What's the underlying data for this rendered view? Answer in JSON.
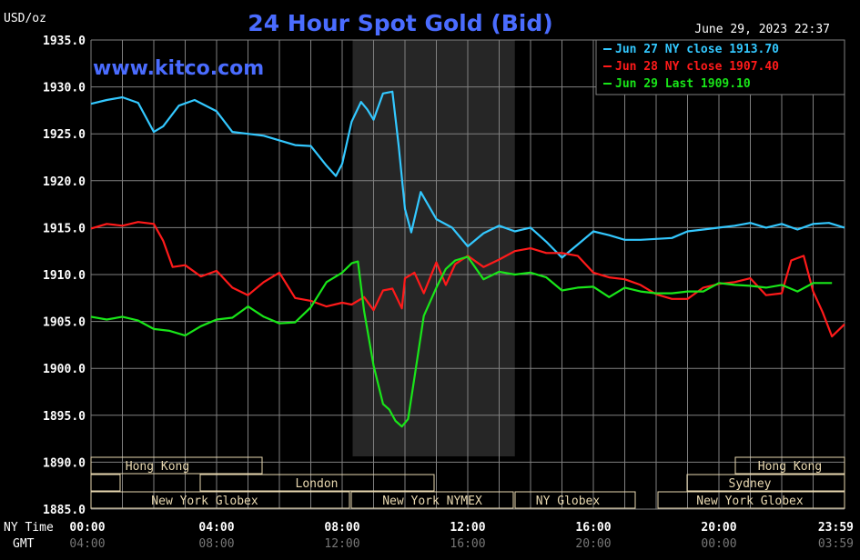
{
  "header": {
    "title": "24 Hour Spot Gold (Bid)",
    "unit": "USD/oz",
    "timestamp": "June 29, 2023 22:37",
    "website": "www.kitco.com"
  },
  "colors": {
    "background": "#000000",
    "grid": "#808080",
    "title": "#4a6cff",
    "jun27": "#33c8ff",
    "jun28": "#ff1a1a",
    "jun29": "#19e619",
    "band_fill": "#e8d8b0",
    "highlight": "#262626"
  },
  "legend": {
    "items": [
      {
        "label": "Jun 27 NY close 1913.70",
        "color_key": "jun27"
      },
      {
        "label": "Jun 28 NY close 1907.40",
        "color_key": "jun28"
      },
      {
        "label": "Jun 29 Last 1909.10",
        "color_key": "jun29"
      }
    ]
  },
  "axis": {
    "row1_label": "NY Time",
    "row2_label": "GMT",
    "ny_ticks": [
      "00:00",
      "04:00",
      "08:00",
      "12:00",
      "16:00",
      "20:00",
      "23:59"
    ],
    "gmt_ticks": [
      "04:00",
      "08:00",
      "12:00",
      "16:00",
      "20:00",
      "00:00",
      "03:59"
    ],
    "y_ticks": [
      "1935.0",
      "1930.0",
      "1925.0",
      "1920.0",
      "1915.0",
      "1910.0",
      "1905.0",
      "1900.0",
      "1895.0",
      "1890.0",
      "1885.0"
    ]
  },
  "sessions": {
    "hong_kong_1": "Hong Kong",
    "london": "London",
    "new_york_globex_1": "New York Globex",
    "new_york_nymex": "New York NYMEX",
    "ny_globex": "NY Globex",
    "hong_kong_2": "Hong Kong",
    "sydney": "Sydney",
    "new_york_globex_2": "New York Globex"
  },
  "chart_data": {
    "type": "line",
    "title": "24 Hour Spot Gold (Bid)",
    "ylabel": "USD/oz",
    "xlabel": "NY Time",
    "ylim": [
      1885,
      1935
    ],
    "xlim": [
      0,
      24
    ],
    "grid": true,
    "legend_position": "top-right",
    "series": [
      {
        "name": "Jun 27 NY close 1913.70",
        "color_key": "jun27",
        "x": [
          0,
          0.5,
          1,
          1.5,
          2,
          2.3,
          2.8,
          3.3,
          4,
          4.5,
          5,
          5.5,
          6,
          6.5,
          7,
          7.5,
          7.8,
          8,
          8.3,
          8.6,
          8.8,
          9,
          9.3,
          9.6,
          9.8,
          10,
          10.2,
          10.5,
          11,
          11.5,
          12,
          12.5,
          13,
          13.5,
          14,
          14.5,
          15,
          15.5,
          16,
          16.5,
          17,
          17.5,
          18,
          18.5,
          19,
          19.5,
          20,
          20.5,
          21,
          21.5,
          22,
          22.5,
          23,
          23.5,
          24
        ],
        "values": [
          1928.2,
          1928.6,
          1928.9,
          1928.3,
          1925.2,
          1925.8,
          1928.0,
          1928.6,
          1927.4,
          1925.2,
          1925.0,
          1924.8,
          1924.3,
          1923.8,
          1923.7,
          1921.6,
          1920.5,
          1921.8,
          1926.3,
          1928.4,
          1927.6,
          1926.5,
          1929.3,
          1929.5,
          1923.7,
          1917.0,
          1914.5,
          1918.8,
          1915.9,
          1915.0,
          1913.0,
          1914.4,
          1915.2,
          1914.6,
          1915.0,
          1913.5,
          1911.8,
          1913.2,
          1914.6,
          1914.2,
          1913.7,
          1913.7,
          1913.8,
          1913.9,
          1914.6,
          1914.8,
          1915.0,
          1915.2,
          1915.5,
          1915.0,
          1915.4,
          1914.8,
          1915.4,
          1915.5,
          1915.0
        ]
      },
      {
        "name": "Jun 28 NY close 1907.40",
        "color_key": "jun28",
        "x": [
          0,
          0.5,
          1,
          1.5,
          2,
          2.3,
          2.6,
          3,
          3.5,
          4,
          4.5,
          5,
          5.5,
          6,
          6.5,
          7,
          7.5,
          8,
          8.3,
          8.7,
          9,
          9.3,
          9.6,
          9.9,
          10,
          10.3,
          10.6,
          11,
          11.3,
          11.6,
          12,
          12.5,
          13,
          13.5,
          14,
          14.5,
          15,
          15.5,
          16,
          16.5,
          17,
          17.5,
          18,
          18.5,
          19,
          19.5,
          20,
          20.5,
          21,
          21.5,
          22,
          22.3,
          22.7,
          23,
          23.3,
          23.6,
          24
        ],
        "values": [
          1914.9,
          1915.4,
          1915.2,
          1915.6,
          1915.4,
          1913.6,
          1910.8,
          1911.0,
          1909.8,
          1910.4,
          1908.6,
          1907.8,
          1909.2,
          1910.2,
          1907.5,
          1907.2,
          1906.6,
          1907.0,
          1906.8,
          1907.6,
          1906.2,
          1908.3,
          1908.5,
          1906.4,
          1909.6,
          1910.2,
          1908.0,
          1911.3,
          1908.9,
          1911.1,
          1912.0,
          1910.8,
          1911.6,
          1912.5,
          1912.8,
          1912.3,
          1912.3,
          1912.0,
          1910.2,
          1909.7,
          1909.5,
          1908.9,
          1907.9,
          1907.4,
          1907.4,
          1908.6,
          1909.0,
          1909.2,
          1909.6,
          1907.8,
          1908.0,
          1911.5,
          1912.0,
          1908.2,
          1906.0,
          1903.4,
          1904.7
        ]
      },
      {
        "name": "Jun 29 Last 1909.10",
        "color_key": "jun29",
        "x": [
          0,
          0.5,
          1,
          1.5,
          2,
          2.5,
          3,
          3.5,
          4,
          4.5,
          5,
          5.5,
          6,
          6.5,
          7,
          7.5,
          8,
          8.3,
          8.5,
          8.7,
          9,
          9.3,
          9.5,
          9.7,
          9.9,
          10.1,
          10.3,
          10.6,
          11,
          11.3,
          11.6,
          12,
          12.5,
          13,
          13.5,
          14,
          14.5,
          15,
          15.5,
          16,
          16.5,
          17,
          17.5,
          18,
          18.5,
          19,
          19.5,
          20,
          20.5,
          21,
          21.5,
          22,
          22.5,
          23,
          23.3,
          23.6
        ],
        "values": [
          1905.5,
          1905.2,
          1905.5,
          1905.1,
          1904.2,
          1904.0,
          1903.5,
          1904.5,
          1905.2,
          1905.4,
          1906.6,
          1905.5,
          1904.8,
          1904.9,
          1906.5,
          1909.2,
          1910.2,
          1911.2,
          1911.4,
          1906.1,
          1900.3,
          1896.2,
          1895.6,
          1894.4,
          1893.8,
          1894.6,
          1899.0,
          1905.6,
          1908.6,
          1910.6,
          1911.5,
          1911.9,
          1909.5,
          1910.3,
          1910.0,
          1910.2,
          1909.7,
          1908.3,
          1908.6,
          1908.7,
          1907.6,
          1908.6,
          1908.2,
          1908.0,
          1908.0,
          1908.2,
          1908.2,
          1909.1,
          1908.9,
          1908.8,
          1908.6,
          1908.9,
          1908.2,
          1909.1,
          1909.1,
          1909.1
        ]
      }
    ]
  }
}
